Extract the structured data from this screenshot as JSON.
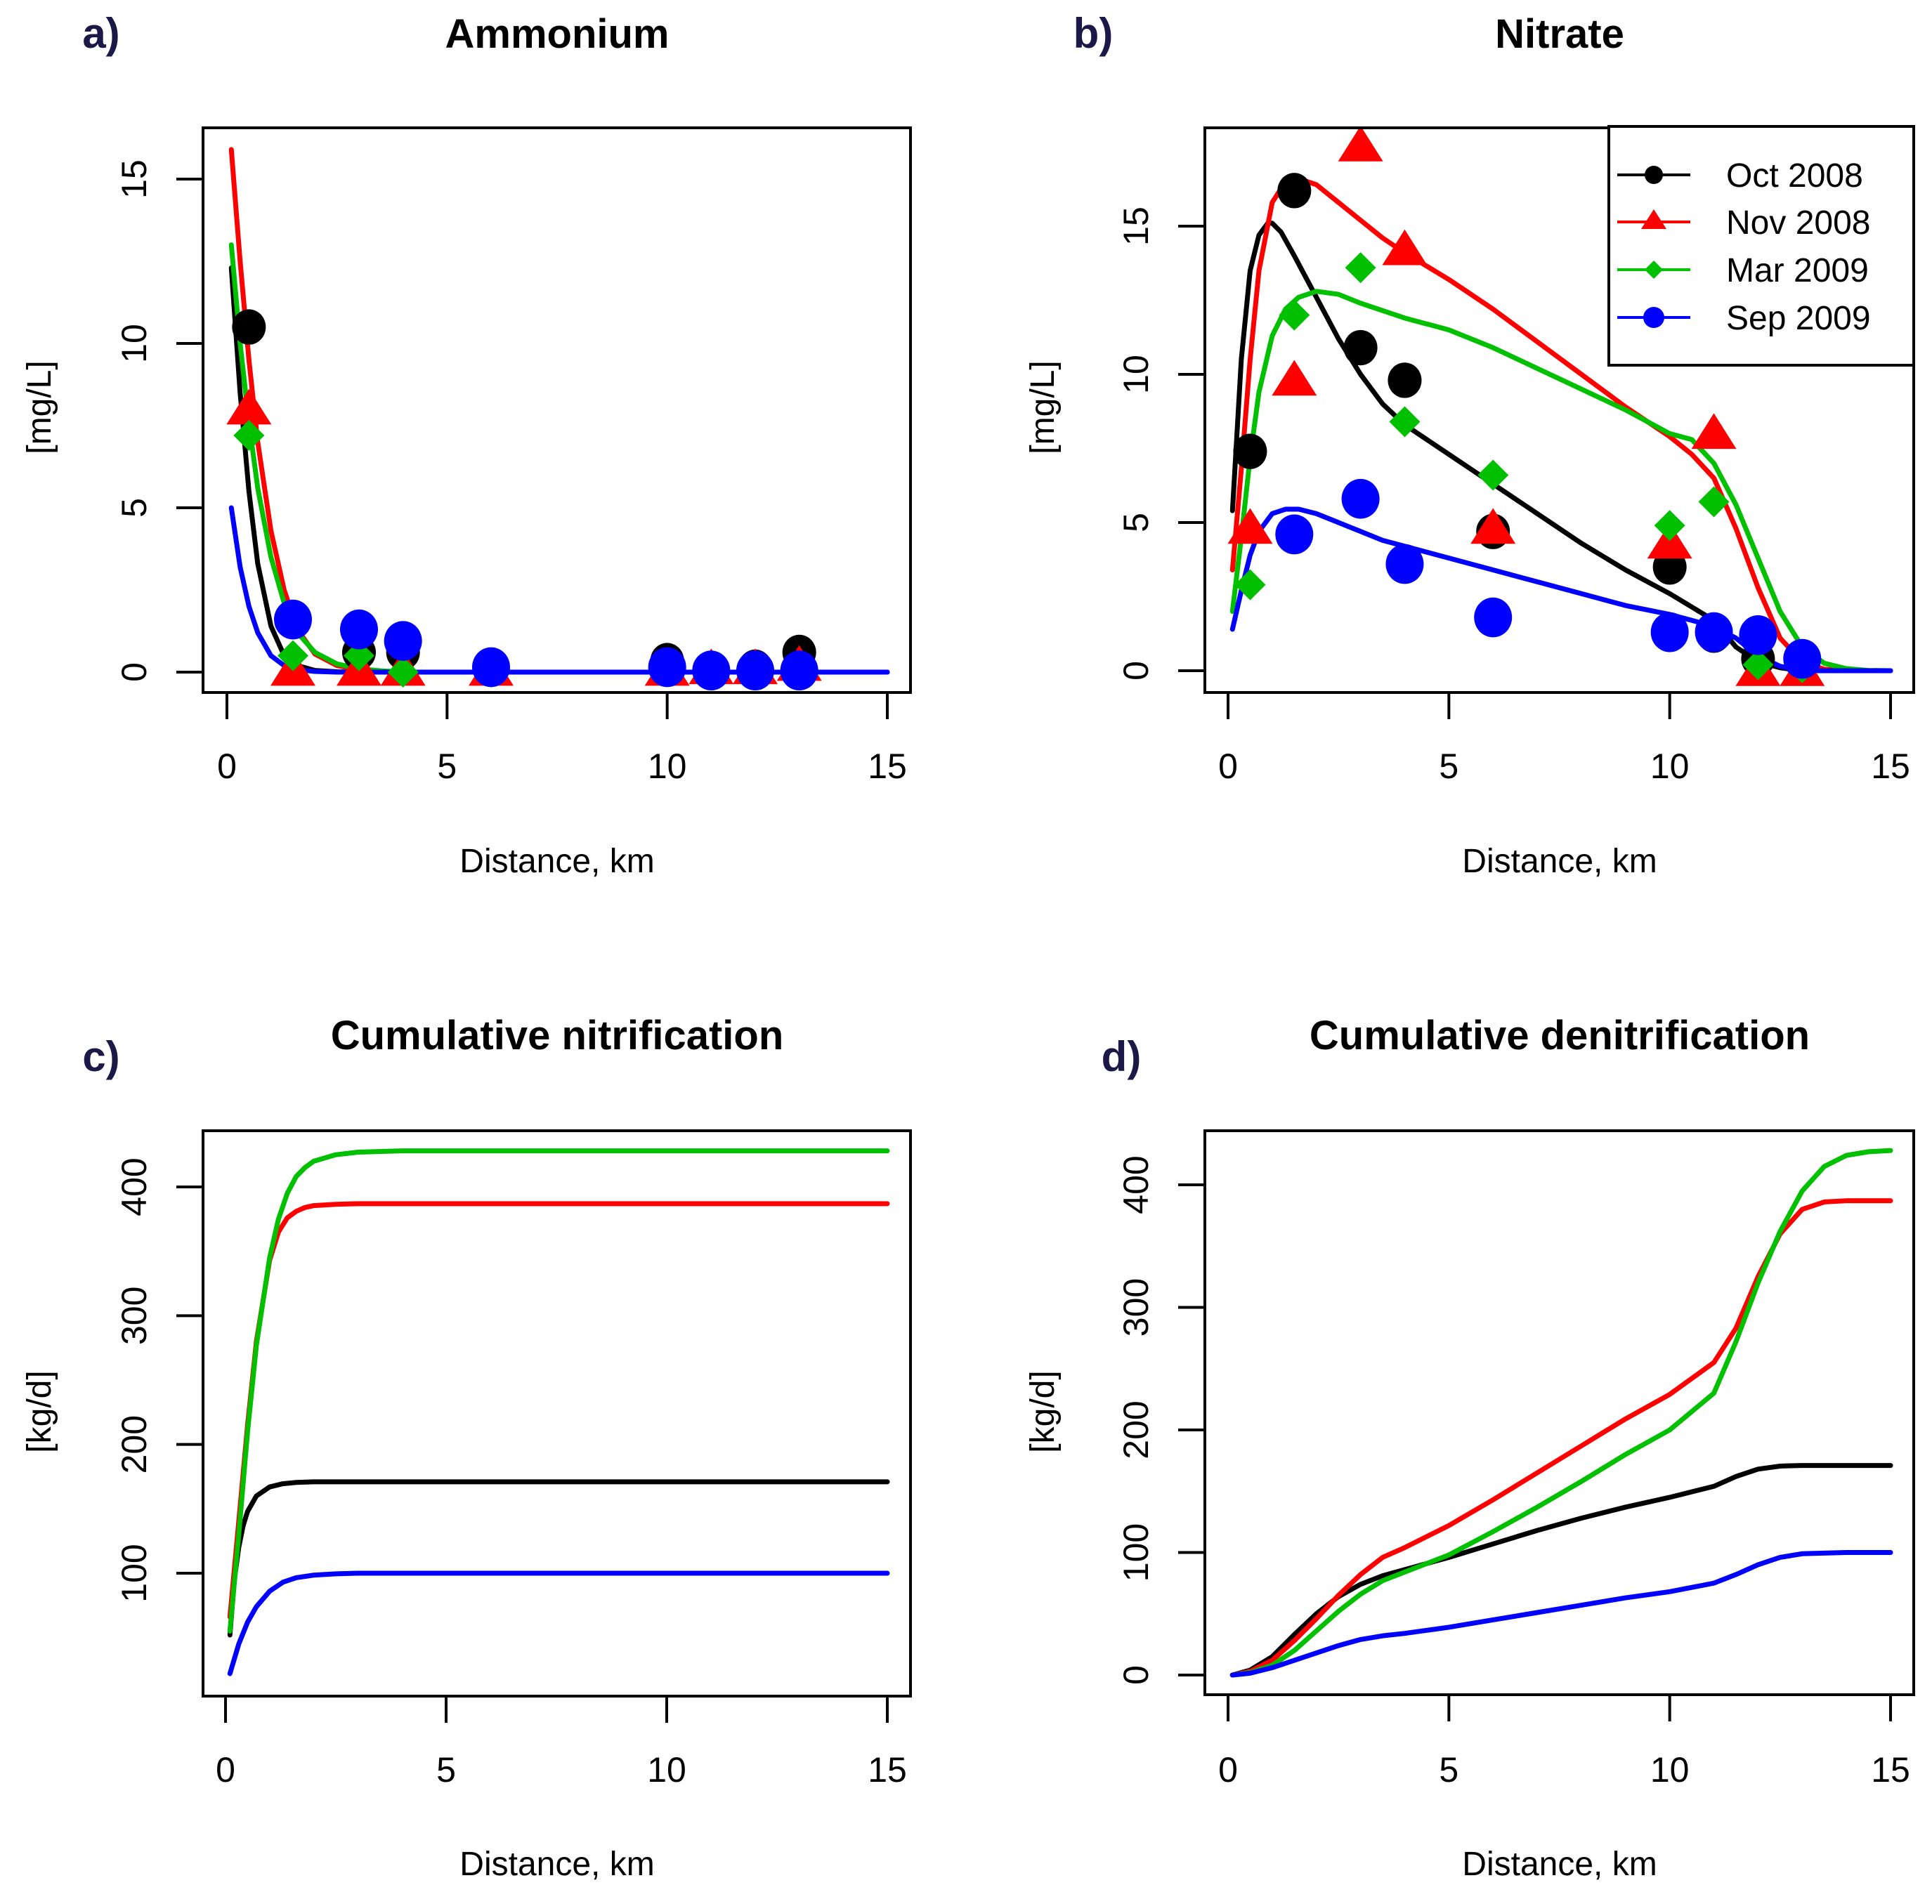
{
  "figure": {
    "series_colors": {
      "Oct 2008": "#000000",
      "Nov 2008": "#ff0000",
      "Mar 2009": "#00c000",
      "Sep 2009": "#0000ff"
    },
    "series_markers": {
      "Oct 2008": "circle",
      "Nov 2008": "triangle",
      "Mar 2009": "diamond",
      "Sep 2009": "circle"
    }
  },
  "chart_data": [
    {
      "id": "a",
      "panel_letter": "a)",
      "type": "scatter",
      "title": "Ammonium",
      "xlabel": "Distance, km",
      "ylabel": "[mg/L]",
      "xlim": [
        0,
        15
      ],
      "ylim": [
        0,
        16
      ],
      "xticks": [
        0,
        5,
        10,
        15
      ],
      "yticks": [
        0,
        5,
        10,
        15
      ],
      "grid": false,
      "legend": null,
      "series": [
        {
          "name": "Oct 2008",
          "points": {
            "x": [
              0.5,
              1.5,
              3,
              4,
              6,
              10,
              11,
              12,
              13
            ],
            "y": [
              10.5,
              1.6,
              0.6,
              0.6,
              0.15,
              0.35,
              0.1,
              0.15,
              0.6
            ]
          },
          "curve": {
            "x": [
              0.1,
              0.3,
              0.5,
              0.7,
              1.0,
              1.3,
              1.6,
              2.0,
              2.5,
              3,
              4,
              6,
              10,
              15
            ],
            "y": [
              12.3,
              8.5,
              5.5,
              3.3,
              1.4,
              0.5,
              0.2,
              0.05,
              0.01,
              0,
              0,
              0,
              0,
              0
            ]
          }
        },
        {
          "name": "Nov 2008",
          "points": {
            "x": [
              0.5,
              1.5,
              3,
              4,
              6,
              10,
              11,
              12,
              13
            ],
            "y": [
              8.0,
              0.05,
              0.05,
              0.05,
              0.05,
              0.05,
              0.1,
              0.1,
              0.2
            ]
          },
          "curve": {
            "x": [
              0.1,
              0.3,
              0.5,
              0.7,
              1.0,
              1.3,
              1.6,
              2.0,
              2.5,
              3,
              3.5,
              4,
              6,
              10,
              15
            ],
            "y": [
              15.9,
              12.5,
              9.5,
              7.0,
              4.3,
              2.5,
              1.3,
              0.55,
              0.2,
              0.08,
              0.03,
              0,
              0,
              0,
              0
            ]
          }
        },
        {
          "name": "Mar 2009",
          "points": {
            "x": [
              0.5,
              1.5,
              3,
              4,
              6
            ],
            "y": [
              7.2,
              0.5,
              0.5,
              0.0,
              0.0
            ]
          },
          "curve": {
            "x": [
              0.1,
              0.3,
              0.5,
              0.7,
              1.0,
              1.3,
              1.6,
              2.0,
              2.5,
              3,
              3.5,
              4,
              6,
              10,
              15
            ],
            "y": [
              13.0,
              10.0,
              7.6,
              5.6,
              3.5,
              2.1,
              1.2,
              0.6,
              0.25,
              0.1,
              0.04,
              0,
              0,
              0,
              0
            ]
          }
        },
        {
          "name": "Sep 2009",
          "points": {
            "x": [
              1.5,
              3,
              4,
              6,
              10,
              11,
              12,
              13
            ],
            "y": [
              1.6,
              1.3,
              0.95,
              0.15,
              0.15,
              0.05,
              0.05,
              0.05
            ]
          },
          "curve": {
            "x": [
              0.1,
              0.3,
              0.5,
              0.7,
              1.0,
              1.3,
              1.6,
              2.0,
              2.5,
              3,
              4,
              6,
              10,
              15
            ],
            "y": [
              5.0,
              3.2,
              2.0,
              1.2,
              0.5,
              0.2,
              0.08,
              0.02,
              0,
              0,
              0,
              0,
              0,
              0
            ]
          }
        }
      ]
    },
    {
      "id": "b",
      "panel_letter": "b)",
      "type": "scatter",
      "title": "Nitrate",
      "xlabel": "Distance, km",
      "ylabel": "[mg/L]",
      "xlim": [
        0,
        15
      ],
      "ylim": [
        0,
        18
      ],
      "xticks": [
        0,
        5,
        10,
        15
      ],
      "yticks": [
        0,
        5,
        10,
        15
      ],
      "grid": false,
      "legend": {
        "placement": "top-right",
        "entries": [
          "Oct 2008",
          "Nov 2008",
          "Mar 2009",
          "Sep 2009"
        ]
      },
      "series": [
        {
          "name": "Oct 2008",
          "points": {
            "x": [
              0.5,
              1.5,
              3,
              4,
              6,
              10,
              11,
              12
            ],
            "y": [
              7.4,
              16.2,
              10.9,
              9.8,
              4.7,
              3.5,
              1.2,
              0.4
            ]
          },
          "curve": {
            "x": [
              0.1,
              0.3,
              0.5,
              0.7,
              0.9,
              1.0,
              1.2,
              1.5,
              2,
              2.5,
              3,
              3.5,
              4,
              5,
              6,
              7,
              8,
              9,
              10,
              11,
              11.5,
              12,
              12.5,
              13,
              15
            ],
            "y": [
              5.4,
              10.5,
              13.5,
              14.7,
              15.1,
              15.1,
              14.8,
              14.0,
              12.6,
              11.2,
              10.0,
              9.0,
              8.3,
              7.3,
              6.3,
              5.3,
              4.3,
              3.4,
              2.6,
              1.7,
              0.8,
              0.3,
              0.1,
              0,
              0
            ]
          }
        },
        {
          "name": "Nov 2008",
          "points": {
            "x": [
              0.5,
              1.5,
              3,
              4,
              6,
              10,
              11,
              12,
              13
            ],
            "y": [
              4.8,
              9.8,
              17.7,
              14.2,
              4.8,
              4.3,
              8.0,
              0.0,
              0.0
            ]
          },
          "curve": {
            "x": [
              0.1,
              0.3,
              0.5,
              0.7,
              1.0,
              1.3,
              1.6,
              2.0,
              2.5,
              3,
              3.5,
              4,
              5,
              6,
              7,
              8,
              9,
              10,
              10.5,
              11,
              11.5,
              12,
              12.5,
              13,
              13.5,
              14,
              15
            ],
            "y": [
              3.4,
              6.8,
              10.5,
              13.5,
              15.8,
              16.5,
              16.6,
              16.4,
              15.8,
              15.2,
              14.6,
              14.1,
              13.2,
              12.2,
              11.1,
              10.0,
              8.9,
              7.9,
              7.3,
              6.5,
              4.8,
              2.8,
              1.1,
              0.3,
              0.05,
              0,
              0
            ]
          }
        },
        {
          "name": "Mar 2009",
          "points": {
            "x": [
              0.5,
              1.5,
              3,
              4,
              6,
              10,
              11,
              12,
              13
            ],
            "y": [
              2.9,
              12.0,
              13.6,
              8.4,
              6.6,
              4.9,
              5.7,
              0.2,
              0.1
            ]
          },
          "curve": {
            "x": [
              0.1,
              0.3,
              0.5,
              0.7,
              1.0,
              1.3,
              1.6,
              2.0,
              2.5,
              3,
              4,
              5,
              6,
              7,
              8,
              9,
              10,
              10.5,
              11,
              11.5,
              12,
              12.5,
              13,
              13.5,
              14,
              14.5,
              15
            ],
            "y": [
              2.0,
              4.5,
              7.2,
              9.4,
              11.3,
              12.2,
              12.6,
              12.8,
              12.7,
              12.4,
              11.9,
              11.5,
              10.9,
              10.2,
              9.5,
              8.8,
              8.0,
              7.8,
              7.0,
              5.6,
              3.8,
              2.0,
              0.8,
              0.25,
              0.07,
              0.01,
              0
            ]
          }
        },
        {
          "name": "Sep 2009",
          "points": {
            "x": [
              1.5,
              3,
              4,
              6,
              10,
              11,
              12,
              13
            ],
            "y": [
              4.6,
              5.8,
              3.6,
              1.8,
              1.3,
              1.3,
              1.2,
              0.4
            ]
          },
          "curve": {
            "x": [
              0.1,
              0.3,
              0.5,
              0.7,
              1.0,
              1.3,
              1.6,
              2.0,
              2.5,
              3,
              3.5,
              4,
              5,
              6,
              7,
              8,
              9,
              10,
              11,
              11.5,
              12,
              12.5,
              13,
              15
            ],
            "y": [
              1.4,
              2.7,
              3.9,
              4.7,
              5.3,
              5.45,
              5.45,
              5.3,
              5.0,
              4.7,
              4.4,
              4.2,
              3.8,
              3.4,
              3.0,
              2.6,
              2.2,
              1.9,
              1.5,
              1.1,
              0.5,
              0.15,
              0,
              0
            ]
          }
        }
      ]
    },
    {
      "id": "c",
      "panel_letter": "c)",
      "type": "line",
      "title": "Cumulative nitrification",
      "xlabel": "Distance, km",
      "ylabel": "[kg/d]",
      "xlim": [
        0,
        15
      ],
      "ylim": [
        7,
        440
      ],
      "xticks": [
        0,
        5,
        10,
        15
      ],
      "yticks": [
        100,
        200,
        300,
        400
      ],
      "grid": false,
      "legend": null,
      "series": [
        {
          "name": "Oct 2008",
          "curve": {
            "x": [
              0.1,
              0.2,
              0.3,
              0.4,
              0.5,
              0.7,
              1.0,
              1.3,
              1.6,
              2.0,
              3,
              5,
              10,
              15
            ],
            "y": [
              52,
              95,
              120,
              137,
              148,
              160,
              167,
              169.5,
              170.5,
              171,
              171,
              171,
              171,
              171
            ]
          }
        },
        {
          "name": "Nov 2008",
          "curve": {
            "x": [
              0.1,
              0.3,
              0.5,
              0.7,
              1.0,
              1.2,
              1.4,
              1.6,
              1.8,
              2.0,
              2.5,
              3,
              4,
              5,
              10,
              15
            ],
            "y": [
              66,
              140,
              215,
              280,
              343,
              365,
              376,
              381,
              384,
              385.5,
              386.5,
              387,
              387,
              387,
              387,
              387
            ]
          }
        },
        {
          "name": "Mar 2009",
          "curve": {
            "x": [
              0.1,
              0.3,
              0.5,
              0.7,
              1.0,
              1.2,
              1.4,
              1.6,
              1.8,
              2.0,
              2.5,
              3,
              4,
              5,
              10,
              15
            ],
            "y": [
              55,
              130,
              210,
              277,
              345,
              375,
              395,
              408,
              415,
              420,
              425,
              427,
              428,
              428,
              428,
              428
            ]
          }
        },
        {
          "name": "Sep 2009",
          "curve": {
            "x": [
              0.1,
              0.3,
              0.5,
              0.7,
              1.0,
              1.3,
              1.6,
              2.0,
              2.5,
              3,
              5,
              10,
              15
            ],
            "y": [
              22,
              45,
              62,
              74,
              86,
              93,
              96.5,
              98.5,
              99.5,
              100,
              100,
              100,
              100
            ]
          }
        }
      ]
    },
    {
      "id": "d",
      "panel_letter": "d)",
      "type": "line",
      "title": "Cumulative denitrification",
      "xlabel": "Distance, km",
      "ylabel": "[kg/d]",
      "xlim": [
        0,
        15
      ],
      "ylim": [
        -20,
        440
      ],
      "xticks": [
        0,
        5,
        10,
        15
      ],
      "yticks": [
        0,
        100,
        200,
        300,
        400
      ],
      "grid": false,
      "legend": null,
      "series": [
        {
          "name": "Oct 2008",
          "curve": {
            "x": [
              0.1,
              0.5,
              1.0,
              1.5,
              2.0,
              2.5,
              3,
              3.5,
              4,
              5,
              6,
              7,
              8,
              9,
              10,
              11,
              11.5,
              12,
              12.5,
              13,
              14,
              15
            ],
            "y": [
              0,
              4,
              15,
              33,
              50,
              64,
              74,
              81,
              86,
              96,
              107,
              118,
              128,
              137,
              145,
              154,
              162,
              168,
              170.5,
              171,
              171,
              171
            ]
          }
        },
        {
          "name": "Nov 2008",
          "curve": {
            "x": [
              0.1,
              0.5,
              1.0,
              1.5,
              2.0,
              2.5,
              3,
              3.5,
              4,
              5,
              6,
              7,
              8,
              9,
              10,
              11,
              11.5,
              12,
              12.5,
              13,
              13.5,
              14,
              15
            ],
            "y": [
              0,
              3,
              12,
              28,
              46,
              65,
              82,
              96,
              104,
              122,
              143,
              165,
              187,
              209,
              229,
              255,
              283,
              325,
              360,
              380,
              386,
              387,
              387
            ]
          }
        },
        {
          "name": "Mar 2009",
          "curve": {
            "x": [
              0.1,
              0.5,
              1.0,
              1.5,
              2.0,
              2.5,
              3,
              3.5,
              4,
              5,
              6,
              7,
              8,
              9,
              10,
              11,
              11.5,
              12,
              12.5,
              13,
              13.5,
              14,
              14.5,
              15
            ],
            "y": [
              0,
              2,
              8,
              20,
              36,
              52,
              66,
              77,
              84,
              98,
              117,
              137,
              158,
              180,
              200,
              230,
              272,
              320,
              362,
              395,
              415,
              424,
              427,
              428
            ]
          }
        },
        {
          "name": "Sep 2009",
          "curve": {
            "x": [
              0.1,
              0.5,
              1.0,
              1.5,
              2.0,
              2.5,
              3,
              3.5,
              4,
              5,
              6,
              7,
              8,
              9,
              10,
              11,
              11.5,
              12,
              12.5,
              13,
              14,
              15
            ],
            "y": [
              0,
              1.5,
              6,
              12,
              18,
              24,
              29,
              32,
              34,
              39,
              45,
              51,
              57,
              63,
              68,
              75,
              82,
              90,
              96,
              99,
              100,
              100
            ]
          }
        }
      ]
    }
  ]
}
